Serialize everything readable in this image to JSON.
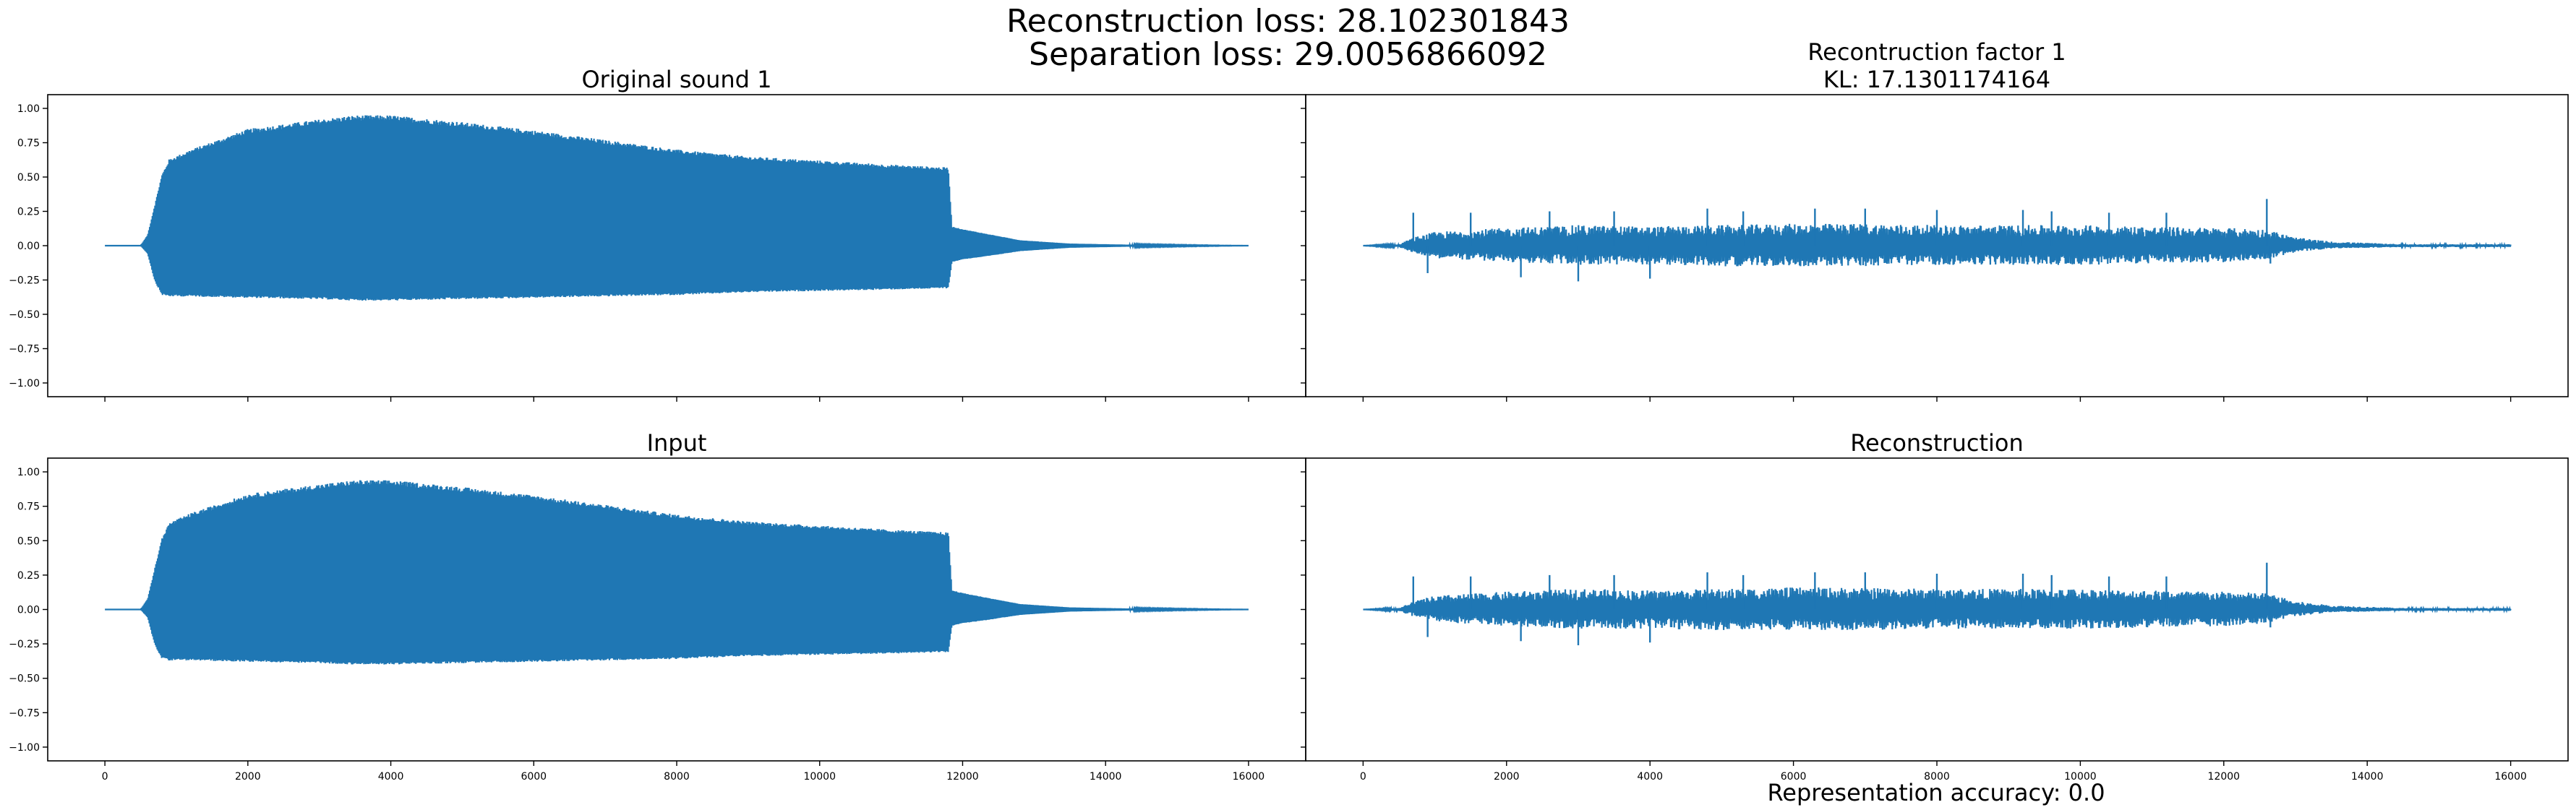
{
  "figure": {
    "suptitle_line1": "Reconstruction loss: 28.102301843",
    "suptitle_line2": "Separation loss: 29.0056866092",
    "footer": "Representation accuracy: 0.0",
    "line_color": "#1f77b4"
  },
  "chart_data": [
    {
      "type": "line",
      "id": "original-sound",
      "title": "Original sound 1",
      "xlim": [
        -800,
        16800
      ],
      "ylim": [
        -1.1,
        1.1
      ],
      "xticks": [],
      "yticks": [
        -1.0,
        -0.75,
        -0.5,
        -0.25,
        0.0,
        0.25,
        0.5,
        0.75,
        1.0
      ],
      "ytick_labels": [
        "−1.00",
        "−0.75",
        "−0.50",
        "−0.25",
        "0.00",
        "0.25",
        "0.50",
        "0.75",
        "1.00"
      ],
      "n_samples": 16000,
      "envelope": {
        "x": [
          0,
          500,
          600,
          700,
          800,
          900,
          1200,
          2000,
          3000,
          3500,
          4000,
          5000,
          6000,
          7000,
          8000,
          9000,
          10000,
          11000,
          11800,
          11850,
          12000,
          12300,
          12800,
          13500,
          14500,
          16000
        ],
        "upper": [
          0.0,
          0.0,
          0.08,
          0.3,
          0.52,
          0.63,
          0.7,
          0.85,
          0.92,
          0.95,
          0.95,
          0.9,
          0.84,
          0.77,
          0.7,
          0.65,
          0.62,
          0.59,
          0.57,
          0.14,
          0.12,
          0.09,
          0.04,
          0.015,
          0.005,
          0.0
        ],
        "lower": [
          0.0,
          0.0,
          -0.06,
          -0.26,
          -0.36,
          -0.37,
          -0.37,
          -0.38,
          -0.39,
          -0.4,
          -0.4,
          -0.39,
          -0.38,
          -0.37,
          -0.36,
          -0.34,
          -0.33,
          -0.32,
          -0.31,
          -0.12,
          -0.1,
          -0.08,
          -0.04,
          -0.015,
          -0.005,
          0.0
        ]
      }
    },
    {
      "type": "line",
      "id": "reconstruction-factor",
      "title": "Recontruction factor 1",
      "subtitle": "KL: 17.1301174164",
      "xlim": [
        -800,
        16800
      ],
      "ylim": [
        -1.1,
        1.1
      ],
      "xticks": [],
      "yticks": [],
      "ytick_labels": [],
      "n_samples": 16000,
      "envelope": {
        "x": [
          0,
          500,
          700,
          1000,
          2000,
          3000,
          4000,
          5000,
          6000,
          7000,
          8000,
          9000,
          10000,
          11000,
          12000,
          12600,
          13000,
          13500,
          14500,
          16000
        ],
        "upper": [
          0.0,
          0.01,
          0.06,
          0.1,
          0.13,
          0.15,
          0.14,
          0.15,
          0.16,
          0.16,
          0.15,
          0.15,
          0.15,
          0.14,
          0.13,
          0.12,
          0.06,
          0.03,
          0.01,
          0.01
        ],
        "lower": [
          0.0,
          -0.01,
          -0.05,
          -0.09,
          -0.12,
          -0.14,
          -0.14,
          -0.15,
          -0.15,
          -0.15,
          -0.14,
          -0.14,
          -0.14,
          -0.13,
          -0.12,
          -0.1,
          -0.05,
          -0.02,
          -0.01,
          -0.01
        ]
      },
      "spikes": [
        [
          700,
          0.24
        ],
        [
          900,
          -0.2
        ],
        [
          1500,
          0.24
        ],
        [
          2200,
          -0.23
        ],
        [
          2600,
          0.25
        ],
        [
          3000,
          -0.26
        ],
        [
          3500,
          0.25
        ],
        [
          4000,
          -0.24
        ],
        [
          4800,
          0.27
        ],
        [
          5300,
          0.25
        ],
        [
          6300,
          0.27
        ],
        [
          7000,
          0.27
        ],
        [
          8000,
          0.26
        ],
        [
          9200,
          0.26
        ],
        [
          9600,
          0.25
        ],
        [
          10400,
          0.24
        ],
        [
          11200,
          0.24
        ],
        [
          12600,
          0.34
        ],
        [
          12650,
          -0.13
        ]
      ]
    },
    {
      "type": "line",
      "id": "input",
      "title": "Input",
      "xlim": [
        -800,
        16800
      ],
      "ylim": [
        -1.1,
        1.1
      ],
      "xticks": [
        0,
        2000,
        4000,
        6000,
        8000,
        10000,
        12000,
        14000,
        16000
      ],
      "yticks": [
        -1.0,
        -0.75,
        -0.5,
        -0.25,
        0.0,
        0.25,
        0.5,
        0.75,
        1.0
      ],
      "ytick_labels": [
        "−1.00",
        "−0.75",
        "−0.50",
        "−0.25",
        "0.00",
        "0.25",
        "0.50",
        "0.75",
        "1.00"
      ],
      "n_samples": 16000,
      "envelope": {
        "x": [
          0,
          500,
          600,
          700,
          800,
          900,
          1200,
          2000,
          3000,
          3500,
          4000,
          5000,
          6000,
          7000,
          8000,
          9000,
          10000,
          11000,
          11800,
          11850,
          12000,
          12300,
          12800,
          13500,
          14500,
          16000
        ],
        "upper": [
          0.0,
          0.0,
          0.08,
          0.3,
          0.52,
          0.63,
          0.7,
          0.84,
          0.91,
          0.94,
          0.94,
          0.89,
          0.83,
          0.76,
          0.69,
          0.64,
          0.61,
          0.58,
          0.56,
          0.14,
          0.12,
          0.09,
          0.04,
          0.015,
          0.005,
          0.0
        ],
        "lower": [
          0.0,
          0.0,
          -0.06,
          -0.26,
          -0.36,
          -0.37,
          -0.37,
          -0.38,
          -0.39,
          -0.4,
          -0.4,
          -0.39,
          -0.38,
          -0.37,
          -0.36,
          -0.34,
          -0.33,
          -0.32,
          -0.31,
          -0.12,
          -0.1,
          -0.08,
          -0.04,
          -0.015,
          -0.005,
          0.0
        ]
      }
    },
    {
      "type": "line",
      "id": "reconstruction",
      "title": "Reconstruction",
      "xlim": [
        -800,
        16800
      ],
      "ylim": [
        -1.1,
        1.1
      ],
      "xticks": [
        0,
        2000,
        4000,
        6000,
        8000,
        10000,
        12000,
        14000,
        16000
      ],
      "yticks": [],
      "ytick_labels": [],
      "n_samples": 16000,
      "envelope": {
        "x": [
          0,
          500,
          700,
          1000,
          2000,
          3000,
          4000,
          5000,
          6000,
          7000,
          8000,
          9000,
          10000,
          11000,
          12000,
          12600,
          13000,
          13500,
          14500,
          16000
        ],
        "upper": [
          0.0,
          0.01,
          0.06,
          0.1,
          0.13,
          0.15,
          0.14,
          0.15,
          0.16,
          0.16,
          0.15,
          0.15,
          0.15,
          0.14,
          0.13,
          0.12,
          0.06,
          0.03,
          0.01,
          0.01
        ],
        "lower": [
          0.0,
          -0.01,
          -0.05,
          -0.09,
          -0.12,
          -0.14,
          -0.14,
          -0.15,
          -0.15,
          -0.15,
          -0.14,
          -0.14,
          -0.14,
          -0.13,
          -0.12,
          -0.1,
          -0.05,
          -0.02,
          -0.01,
          -0.01
        ]
      },
      "spikes": [
        [
          700,
          0.24
        ],
        [
          900,
          -0.2
        ],
        [
          1500,
          0.24
        ],
        [
          2200,
          -0.23
        ],
        [
          2600,
          0.25
        ],
        [
          3000,
          -0.26
        ],
        [
          3500,
          0.25
        ],
        [
          4000,
          -0.24
        ],
        [
          4800,
          0.27
        ],
        [
          5300,
          0.25
        ],
        [
          6300,
          0.27
        ],
        [
          7000,
          0.27
        ],
        [
          8000,
          0.26
        ],
        [
          9200,
          0.26
        ],
        [
          9600,
          0.25
        ],
        [
          10400,
          0.24
        ],
        [
          11200,
          0.24
        ],
        [
          12600,
          0.34
        ],
        [
          12650,
          -0.13
        ]
      ]
    }
  ]
}
